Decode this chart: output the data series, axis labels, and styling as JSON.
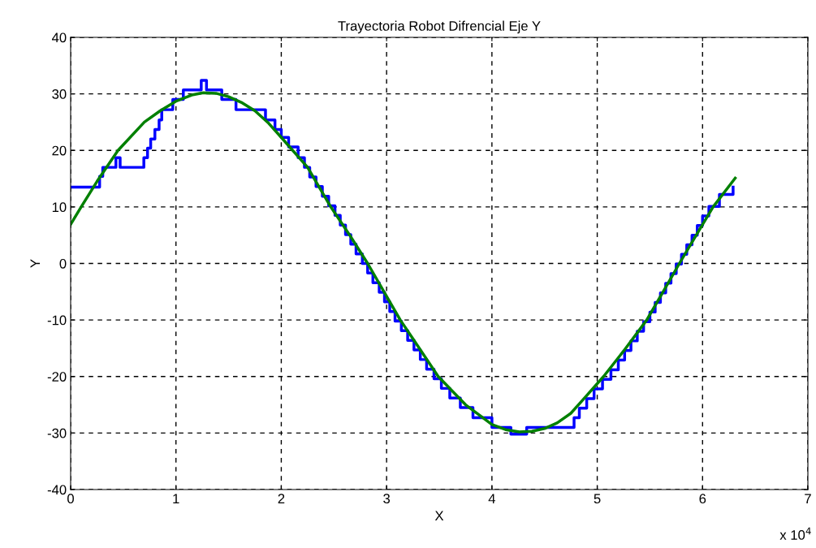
{
  "chart_data": {
    "type": "line",
    "title": "Trayectoria Robot Difrencial Eje Y",
    "xlabel": "X",
    "ylabel": "Y",
    "annotations": [
      "x 10$^{4}$"
    ],
    "series": [
      {
        "type": "step",
        "color": "#0000ff",
        "x": [
          0,
          0.275,
          0.305,
          0.43,
          0.47,
          0.695,
          0.73,
          0.76,
          0.8,
          0.84,
          0.865,
          0.97,
          1.07,
          1.24,
          1.29,
          1.435,
          1.57,
          1.85,
          1.94,
          2.0,
          2.07,
          2.16,
          2.22,
          2.27,
          2.33,
          2.39,
          2.45,
          2.51,
          2.56,
          2.61,
          2.66,
          2.71,
          2.77,
          2.82,
          2.87,
          2.93,
          2.98,
          3.03,
          3.08,
          3.14,
          3.2,
          3.26,
          3.32,
          3.38,
          3.45,
          3.52,
          3.6,
          3.7,
          3.82,
          4.0,
          4.18,
          4.33,
          4.78,
          4.83,
          4.9,
          4.97,
          5.05,
          5.13,
          5.2,
          5.26,
          5.32,
          5.38,
          5.44,
          5.5,
          5.55,
          5.6,
          5.65,
          5.7,
          5.75,
          5.8,
          5.85,
          5.9,
          5.95,
          6.0,
          6.06,
          6.16,
          6.29
        ],
        "values": [
          13.5,
          15.4,
          17.0,
          18.7,
          17.0,
          18.7,
          20.4,
          22.0,
          23.7,
          25.4,
          27.2,
          29.0,
          30.7,
          32.4,
          30.7,
          29.0,
          27.2,
          25.4,
          23.7,
          22.3,
          20.6,
          18.7,
          17.0,
          15.3,
          13.6,
          11.9,
          10.2,
          8.5,
          6.8,
          5.1,
          3.4,
          1.7,
          0,
          -1.7,
          -3.4,
          -5.1,
          -6.8,
          -8.5,
          -10.2,
          -11.9,
          -13.6,
          -15.3,
          -17.0,
          -18.7,
          -20.4,
          -22.1,
          -23.8,
          -25.5,
          -27.3,
          -29.0,
          -30.2,
          -29.0,
          -27.3,
          -25.6,
          -23.9,
          -22.2,
          -20.5,
          -18.8,
          -17.1,
          -15.4,
          -13.7,
          -12.0,
          -10.3,
          -8.6,
          -6.9,
          -5.2,
          -3.5,
          -1.8,
          -0.1,
          1.6,
          3.3,
          5.0,
          6.7,
          8.4,
          10.1,
          12.2,
          13.5
        ]
      },
      {
        "color": "#008000",
        "x": [
          0,
          0.1,
          0.25,
          0.45,
          0.7,
          0.85,
          1.0,
          1.15,
          1.26,
          1.38,
          1.5,
          1.62,
          1.75,
          1.88,
          2.0,
          2.25,
          2.47,
          2.65,
          2.82,
          3.13,
          3.49,
          3.75,
          4.0,
          4.13,
          4.26,
          4.38,
          4.5,
          4.62,
          4.75,
          4.88,
          5.06,
          5.25,
          5.47,
          5.62,
          5.78,
          5.94,
          6.1,
          6.31
        ],
        "values": [
          6.9,
          10,
          14.5,
          20,
          25,
          27,
          28.7,
          29.8,
          30.2,
          30.1,
          29.5,
          28.5,
          27,
          24.8,
          22.3,
          17,
          10,
          5,
          0,
          -10,
          -20,
          -25,
          -28.5,
          -29.4,
          -29.8,
          -29.7,
          -29.2,
          -28.2,
          -26.5,
          -23.8,
          -20,
          -15.5,
          -10,
          -5.2,
          0,
          5,
          10,
          15.1
        ]
      }
    ],
    "xlim": [
      0,
      7
    ],
    "xticks": [
      0,
      1,
      2,
      3,
      4,
      5,
      6,
      7
    ],
    "ylim": [
      -40,
      40
    ],
    "yticks": [
      -40,
      -30,
      -20,
      -10,
      0,
      10,
      20,
      30,
      40
    ],
    "grid": true,
    "line_style": "solid",
    "marker": "none"
  }
}
